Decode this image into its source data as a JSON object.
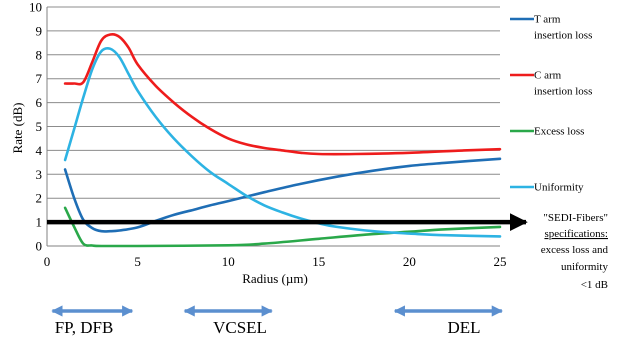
{
  "chart_data": {
    "type": "line",
    "xlabel": "Radius (µm)",
    "ylabel": "Rate (dB)",
    "xlim": [
      0,
      25
    ],
    "ylim": [
      0,
      10
    ],
    "x_ticks": [
      "0",
      "5",
      "10",
      "15",
      "20",
      "25"
    ],
    "y_ticks": [
      "0",
      "1",
      "2",
      "3",
      "4",
      "5",
      "6",
      "7",
      "8",
      "9",
      "10"
    ],
    "grid": "horizontal",
    "legend_position": "right",
    "series": [
      {
        "name_lines": [
          "T arm",
          "insertion loss"
        ],
        "color": "#1f6eb5",
        "points": [
          [
            1,
            3.2
          ],
          [
            1.5,
            2.0
          ],
          [
            2,
            1.1
          ],
          [
            2.5,
            0.75
          ],
          [
            3,
            0.62
          ],
          [
            3.5,
            0.62
          ],
          [
            4,
            0.65
          ],
          [
            5,
            0.78
          ],
          [
            6,
            1.05
          ],
          [
            7,
            1.3
          ],
          [
            8,
            1.5
          ],
          [
            9,
            1.7
          ],
          [
            10,
            1.88
          ],
          [
            12,
            2.25
          ],
          [
            14,
            2.6
          ],
          [
            16,
            2.9
          ],
          [
            18,
            3.15
          ],
          [
            20,
            3.35
          ],
          [
            22,
            3.48
          ],
          [
            25,
            3.65
          ]
        ]
      },
      {
        "name_lines": [
          "C arm",
          "insertion loss"
        ],
        "color": "#ee1c1c",
        "points": [
          [
            1,
            6.8
          ],
          [
            1.5,
            6.8
          ],
          [
            2,
            6.85
          ],
          [
            2.5,
            7.7
          ],
          [
            3,
            8.6
          ],
          [
            3.5,
            8.85
          ],
          [
            4,
            8.75
          ],
          [
            4.5,
            8.3
          ],
          [
            5,
            7.6
          ],
          [
            6,
            6.7
          ],
          [
            7,
            6.0
          ],
          [
            8,
            5.4
          ],
          [
            9,
            4.9
          ],
          [
            10,
            4.5
          ],
          [
            11,
            4.25
          ],
          [
            12,
            4.1
          ],
          [
            13,
            4.0
          ],
          [
            14,
            3.9
          ],
          [
            15,
            3.85
          ],
          [
            17,
            3.85
          ],
          [
            20,
            3.9
          ],
          [
            23,
            4.0
          ],
          [
            25,
            4.05
          ]
        ]
      },
      {
        "name_lines": [
          "Excess loss"
        ],
        "color": "#2aa84a",
        "points": [
          [
            1,
            1.6
          ],
          [
            1.5,
            0.8
          ],
          [
            2,
            0.1
          ],
          [
            2.5,
            0.02
          ],
          [
            3,
            0
          ],
          [
            5,
            0
          ],
          [
            10,
            0.03
          ],
          [
            12,
            0.1
          ],
          [
            15,
            0.3
          ],
          [
            18,
            0.5
          ],
          [
            20,
            0.6
          ],
          [
            22,
            0.7
          ],
          [
            25,
            0.8
          ]
        ]
      },
      {
        "name_lines": [
          "Uniformity"
        ],
        "color": "#2db3e3",
        "points": [
          [
            1,
            3.6
          ],
          [
            1.5,
            4.9
          ],
          [
            2,
            6.2
          ],
          [
            2.5,
            7.4
          ],
          [
            3,
            8.15
          ],
          [
            3.5,
            8.25
          ],
          [
            4,
            7.9
          ],
          [
            4.5,
            7.2
          ],
          [
            5,
            6.5
          ],
          [
            6,
            5.4
          ],
          [
            7,
            4.5
          ],
          [
            8,
            3.75
          ],
          [
            9,
            3.1
          ],
          [
            10,
            2.6
          ],
          [
            11,
            2.1
          ],
          [
            12,
            1.7
          ],
          [
            13,
            1.4
          ],
          [
            14,
            1.15
          ],
          [
            15,
            0.95
          ],
          [
            16,
            0.8
          ],
          [
            18,
            0.62
          ],
          [
            20,
            0.52
          ],
          [
            22,
            0.45
          ],
          [
            25,
            0.4
          ]
        ]
      }
    ],
    "threshold": {
      "y": 1,
      "color": "#000000"
    },
    "annotation_lines": [
      "\"SEDI-Fibers\"",
      "specifications:",
      "excess loss and",
      "uniformity",
      "<1 dB"
    ],
    "bands": [
      {
        "label": "FP, DFB",
        "x_start": 0.3,
        "x_end": 4.7
      },
      {
        "label": "VCSEL",
        "x_start": 7.6,
        "x_end": 12.4
      },
      {
        "label": "DEL",
        "x_start": 19.2,
        "x_end": 25.1
      }
    ]
  }
}
